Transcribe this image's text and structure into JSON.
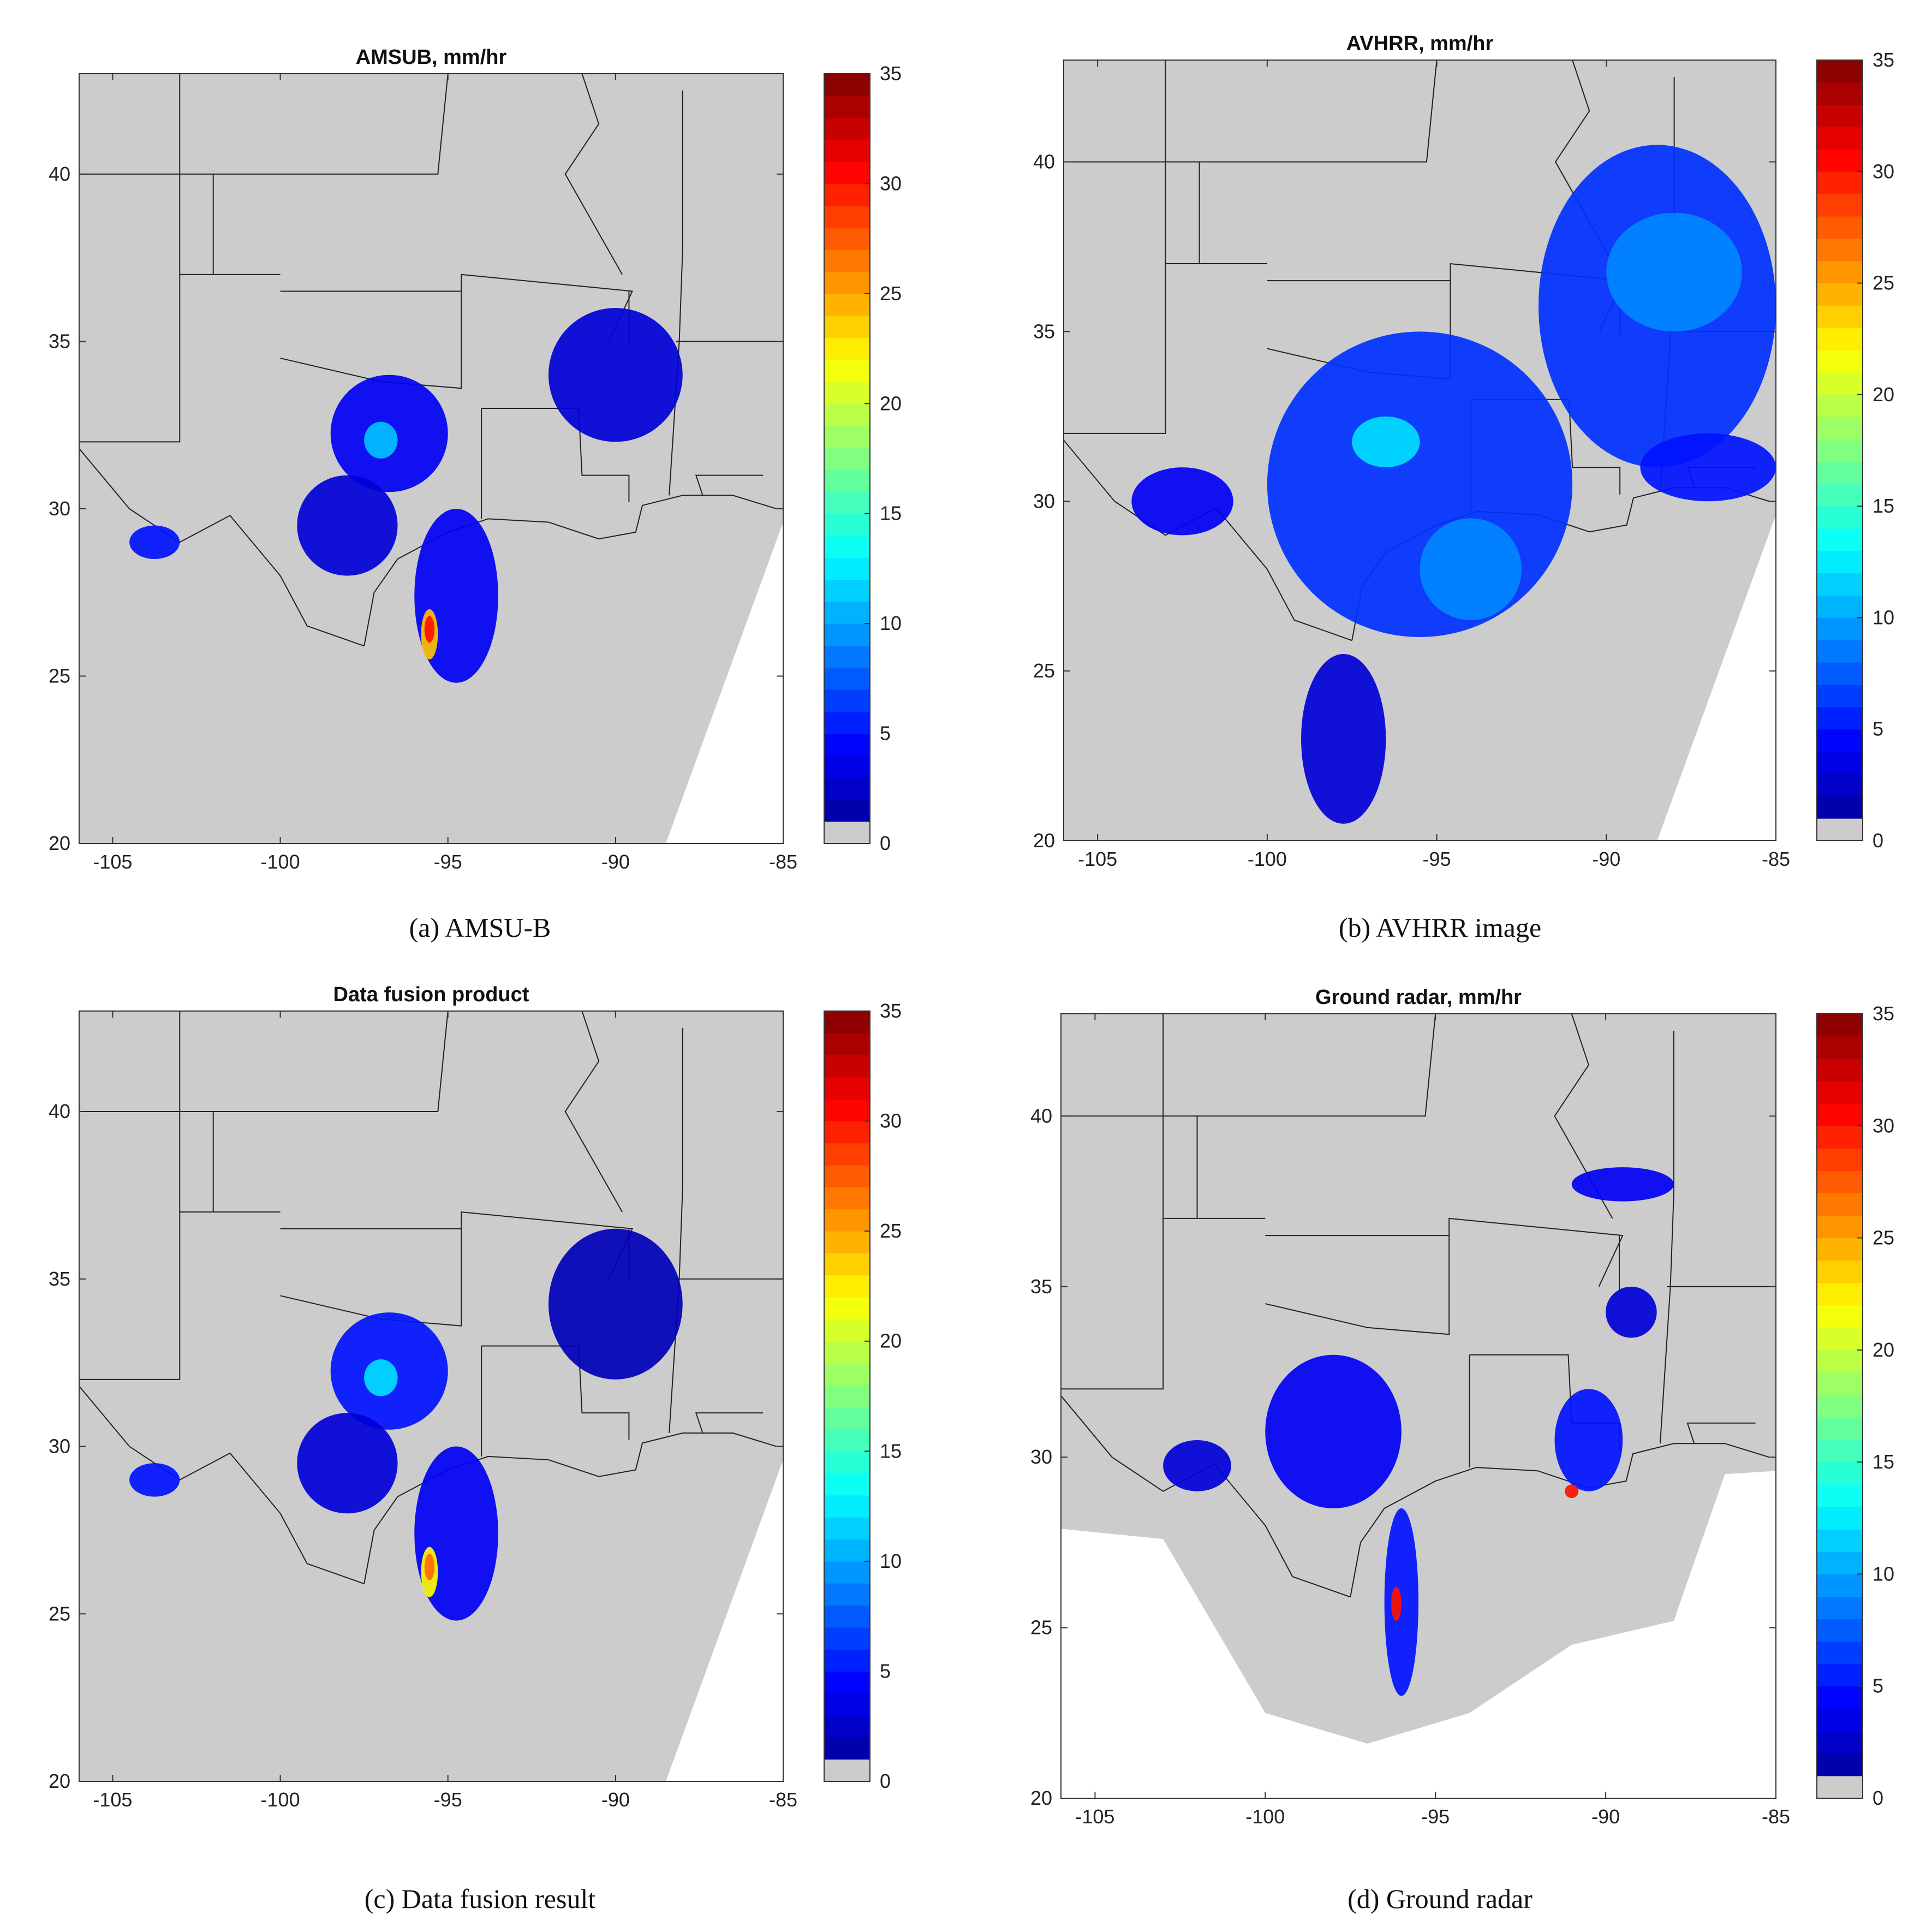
{
  "colors": {
    "land": "#cccccc",
    "ocean": "#cccccc",
    "no_data": "#ffffff",
    "boundary": "#222222",
    "colormap": [
      "#000080",
      "#0000ff",
      "#0080ff",
      "#00ffff",
      "#80ff80",
      "#ffff00",
      "#ff8000",
      "#ff0000",
      "#800000"
    ]
  },
  "chart_data": [
    {
      "type": "heatmap",
      "panel": "a",
      "title": "AMSUB, mm/hr",
      "caption": "(a) AMSU-B",
      "xlim": [
        -106,
        -85
      ],
      "ylim": [
        20,
        43
      ],
      "xticks": [
        -105,
        -100,
        -95,
        -90,
        -85
      ],
      "yticks": [
        20,
        25,
        30,
        35,
        40
      ],
      "colorbar": {
        "range": [
          0,
          35
        ],
        "ticks": [
          0,
          5,
          10,
          15,
          20,
          25,
          30,
          35
        ]
      },
      "rain_regions": [
        {
          "lon": [
            -98.5,
            -95.0
          ],
          "lat": [
            30.5,
            34.0
          ],
          "value": 4
        },
        {
          "lon": [
            -97.5,
            -96.5
          ],
          "lat": [
            31.5,
            32.6
          ],
          "value": 11
        },
        {
          "lon": [
            -96.0,
            -93.5
          ],
          "lat": [
            24.8,
            30.0
          ],
          "value": 4
        },
        {
          "lon": [
            -95.8,
            -95.3
          ],
          "lat": [
            25.5,
            27.0
          ],
          "value": 24
        },
        {
          "lon": [
            -95.7,
            -95.4
          ],
          "lat": [
            26.0,
            26.8
          ],
          "value": 30
        },
        {
          "lon": [
            -92.0,
            -88.0
          ],
          "lat": [
            32.0,
            36.0
          ],
          "value": 3
        },
        {
          "lon": [
            -99.5,
            -96.5
          ],
          "lat": [
            28.0,
            31.0
          ],
          "value": 3
        },
        {
          "lon": [
            -104.5,
            -103.0
          ],
          "lat": [
            28.5,
            29.5
          ],
          "value": 5
        }
      ]
    },
    {
      "type": "heatmap",
      "panel": "b",
      "title": "AVHRR, mm/hr",
      "caption": "(b) AVHRR image",
      "xlim": [
        -106,
        -85
      ],
      "ylim": [
        20,
        43
      ],
      "xticks": [
        -105,
        -100,
        -95,
        -90,
        -85
      ],
      "yticks": [
        20,
        25,
        30,
        35,
        40
      ],
      "colorbar": {
        "range": [
          0,
          35
        ],
        "ticks": [
          0,
          5,
          10,
          15,
          20,
          25,
          30,
          35
        ]
      },
      "rain_regions": [
        {
          "lon": [
            -100.0,
            -91.0
          ],
          "lat": [
            26.0,
            35.0
          ],
          "value": 6
        },
        {
          "lon": [
            -97.5,
            -95.5
          ],
          "lat": [
            31.0,
            32.5
          ],
          "value": 12
        },
        {
          "lon": [
            -95.5,
            -92.5
          ],
          "lat": [
            26.5,
            29.5
          ],
          "value": 9
        },
        {
          "lon": [
            -92.0,
            -85.0
          ],
          "lat": [
            31.0,
            40.5
          ],
          "value": 6
        },
        {
          "lon": [
            -90.0,
            -86.0
          ],
          "lat": [
            35.0,
            38.5
          ],
          "value": 9
        },
        {
          "lon": [
            -104.0,
            -101.0
          ],
          "lat": [
            29.0,
            31.0
          ],
          "value": 4
        },
        {
          "lon": [
            -99.0,
            -96.5
          ],
          "lat": [
            20.5,
            25.5
          ],
          "value": 3
        },
        {
          "lon": [
            -89.0,
            -85.0
          ],
          "lat": [
            30.0,
            32.0
          ],
          "value": 5
        }
      ]
    },
    {
      "type": "heatmap",
      "panel": "c",
      "title": "Data fusion product",
      "caption": "(c) Data fusion result",
      "xlim": [
        -106,
        -85
      ],
      "ylim": [
        20,
        43
      ],
      "xticks": [
        -105,
        -100,
        -95,
        -90,
        -85
      ],
      "yticks": [
        20,
        25,
        30,
        35,
        40
      ],
      "colorbar": {
        "range": [
          0,
          35
        ],
        "ticks": [
          0,
          5,
          10,
          15,
          20,
          25,
          30,
          35
        ]
      },
      "rain_regions": [
        {
          "lon": [
            -98.5,
            -95.0
          ],
          "lat": [
            30.5,
            34.0
          ],
          "value": 5
        },
        {
          "lon": [
            -97.5,
            -96.5
          ],
          "lat": [
            31.5,
            32.6
          ],
          "value": 12
        },
        {
          "lon": [
            -96.0,
            -93.5
          ],
          "lat": [
            24.8,
            30.0
          ],
          "value": 4
        },
        {
          "lon": [
            -95.8,
            -95.3
          ],
          "lat": [
            25.5,
            27.0
          ],
          "value": 22
        },
        {
          "lon": [
            -95.7,
            -95.4
          ],
          "lat": [
            26.0,
            26.8
          ],
          "value": 27
        },
        {
          "lon": [
            -92.0,
            -88.0
          ],
          "lat": [
            32.0,
            36.5
          ],
          "value": 2
        },
        {
          "lon": [
            -99.5,
            -96.5
          ],
          "lat": [
            28.0,
            31.0
          ],
          "value": 3
        },
        {
          "lon": [
            -104.5,
            -103.0
          ],
          "lat": [
            28.5,
            29.5
          ],
          "value": 5
        }
      ]
    },
    {
      "type": "heatmap",
      "panel": "d",
      "title": "Ground radar, mm/hr",
      "caption": "(d) Ground radar",
      "xlim": [
        -106,
        -85
      ],
      "ylim": [
        20,
        43
      ],
      "xticks": [
        -105,
        -100,
        -95,
        -90,
        -85
      ],
      "yticks": [
        20,
        25,
        30,
        35,
        40
      ],
      "colorbar": {
        "range": [
          0,
          35
        ],
        "ticks": [
          0,
          5,
          10,
          15,
          20,
          25,
          30,
          35
        ]
      },
      "rain_regions": [
        {
          "lon": [
            -100.0,
            -96.0
          ],
          "lat": [
            28.5,
            33.0
          ],
          "value": 4
        },
        {
          "lon": [
            -96.5,
            -95.5
          ],
          "lat": [
            23.0,
            28.5
          ],
          "value": 5
        },
        {
          "lon": [
            -96.3,
            -96.0
          ],
          "lat": [
            25.2,
            26.2
          ],
          "value": 30
        },
        {
          "lon": [
            -91.5,
            -89.5
          ],
          "lat": [
            29.0,
            32.0
          ],
          "value": 5
        },
        {
          "lon": [
            -91.2,
            -90.8
          ],
          "lat": [
            28.8,
            29.2
          ],
          "value": 30
        },
        {
          "lon": [
            -91.0,
            -88.0
          ],
          "lat": [
            37.5,
            38.5
          ],
          "value": 4
        },
        {
          "lon": [
            -90.0,
            -88.5
          ],
          "lat": [
            33.5,
            35.0
          ],
          "value": 3
        },
        {
          "lon": [
            -103.0,
            -101.0
          ],
          "lat": [
            29.0,
            30.5
          ],
          "value": 3
        }
      ]
    }
  ]
}
